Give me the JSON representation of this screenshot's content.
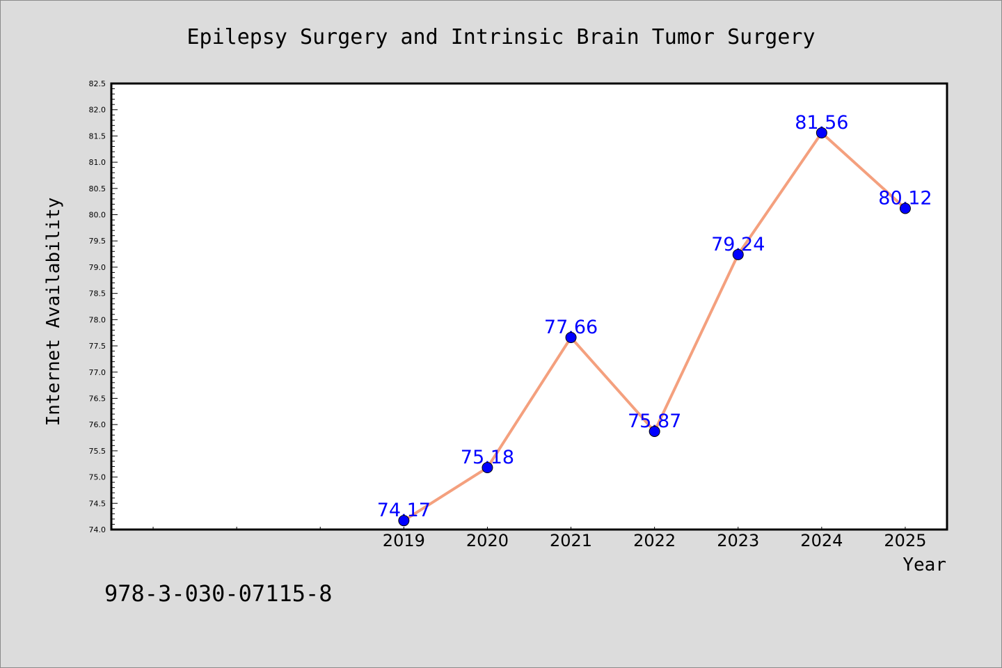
{
  "footer": {
    "isbn": "978-3-030-07115-8"
  },
  "colors": {
    "background": "#dcdcdc",
    "line": "#f4a07e",
    "marker": "#0000ff",
    "label": "#0000ff",
    "plot_bg": "#ffffff"
  },
  "chart_data": {
    "type": "line",
    "title": "Epilepsy Surgery and Intrinsic Brain Tumor Surgery",
    "xlabel": "Year",
    "ylabel": "Internet Availability",
    "x_ticks": [
      "2019",
      "2020",
      "2021",
      "2022",
      "2023",
      "2024",
      "2025"
    ],
    "xlim": [
      2015.5,
      2025.5
    ],
    "ylim": [
      74.0,
      82.5
    ],
    "y_ticks": [
      "74.0",
      "74.5",
      "75.0",
      "75.5",
      "76.0",
      "76.5",
      "77.0",
      "77.5",
      "78.0",
      "78.5",
      "79.0",
      "79.5",
      "80.0",
      "80.5",
      "81.0",
      "81.5",
      "82.0",
      "82.5"
    ],
    "series": [
      {
        "x": [
          2019,
          2020,
          2021,
          2022,
          2023,
          2024,
          2025
        ],
        "values": [
          74.17,
          75.18,
          77.66,
          75.87,
          79.24,
          81.56,
          80.12
        ],
        "labels": [
          "74.17",
          "75.18",
          "77.66",
          "75.87",
          "79.24",
          "81.56",
          "80.12"
        ]
      }
    ],
    "grid": false,
    "legend": "none"
  }
}
